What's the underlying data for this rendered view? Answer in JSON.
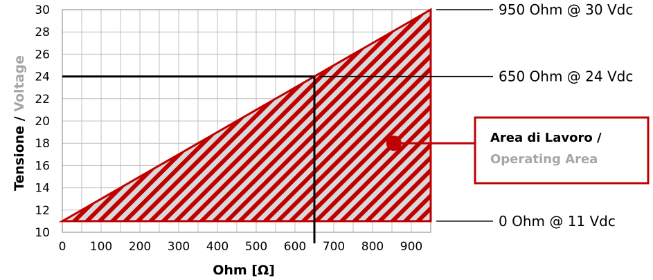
{
  "chart_data": {
    "type": "area",
    "xlabel": "Ohm [Ω]",
    "ylabel_primary": "Tensione / ",
    "ylabel_secondary": "Voltage",
    "xlim": [
      0,
      950
    ],
    "ylim": [
      10,
      30
    ],
    "x_ticks": [
      0,
      100,
      200,
      300,
      400,
      500,
      600,
      700,
      800,
      900
    ],
    "y_ticks": [
      10,
      12,
      14,
      16,
      18,
      20,
      22,
      24,
      26,
      28,
      30
    ],
    "x_grid_step": 50,
    "y_grid_step": 2,
    "grid": true,
    "operating_area": {
      "vertices": [
        {
          "x": 0,
          "y": 11
        },
        {
          "x": 950,
          "y": 30
        },
        {
          "x": 950,
          "y": 11
        }
      ],
      "fill": "#d9d9d9",
      "hatch_color": "#c00000",
      "border_color": "#c00000"
    },
    "reference_point": {
      "x": 650,
      "y": 24
    },
    "annotations": [
      {
        "text": "950 Ohm @ 30 Vdc",
        "x": 950,
        "y": 30
      },
      {
        "text": "650 Ohm @ 24 Vdc",
        "x": 650,
        "y": 24
      },
      {
        "text": "0 Ohm @ 11 Vdc",
        "x": 950,
        "y": 11
      }
    ],
    "area_label": {
      "line1": "Area di Lavoro /",
      "line2": "Operating Area",
      "marker": {
        "x": 855,
        "y": 18
      }
    },
    "colors": {
      "red": "#c00000",
      "grey_text": "#a6a6a6",
      "grid": "#bfbfbf"
    }
  }
}
